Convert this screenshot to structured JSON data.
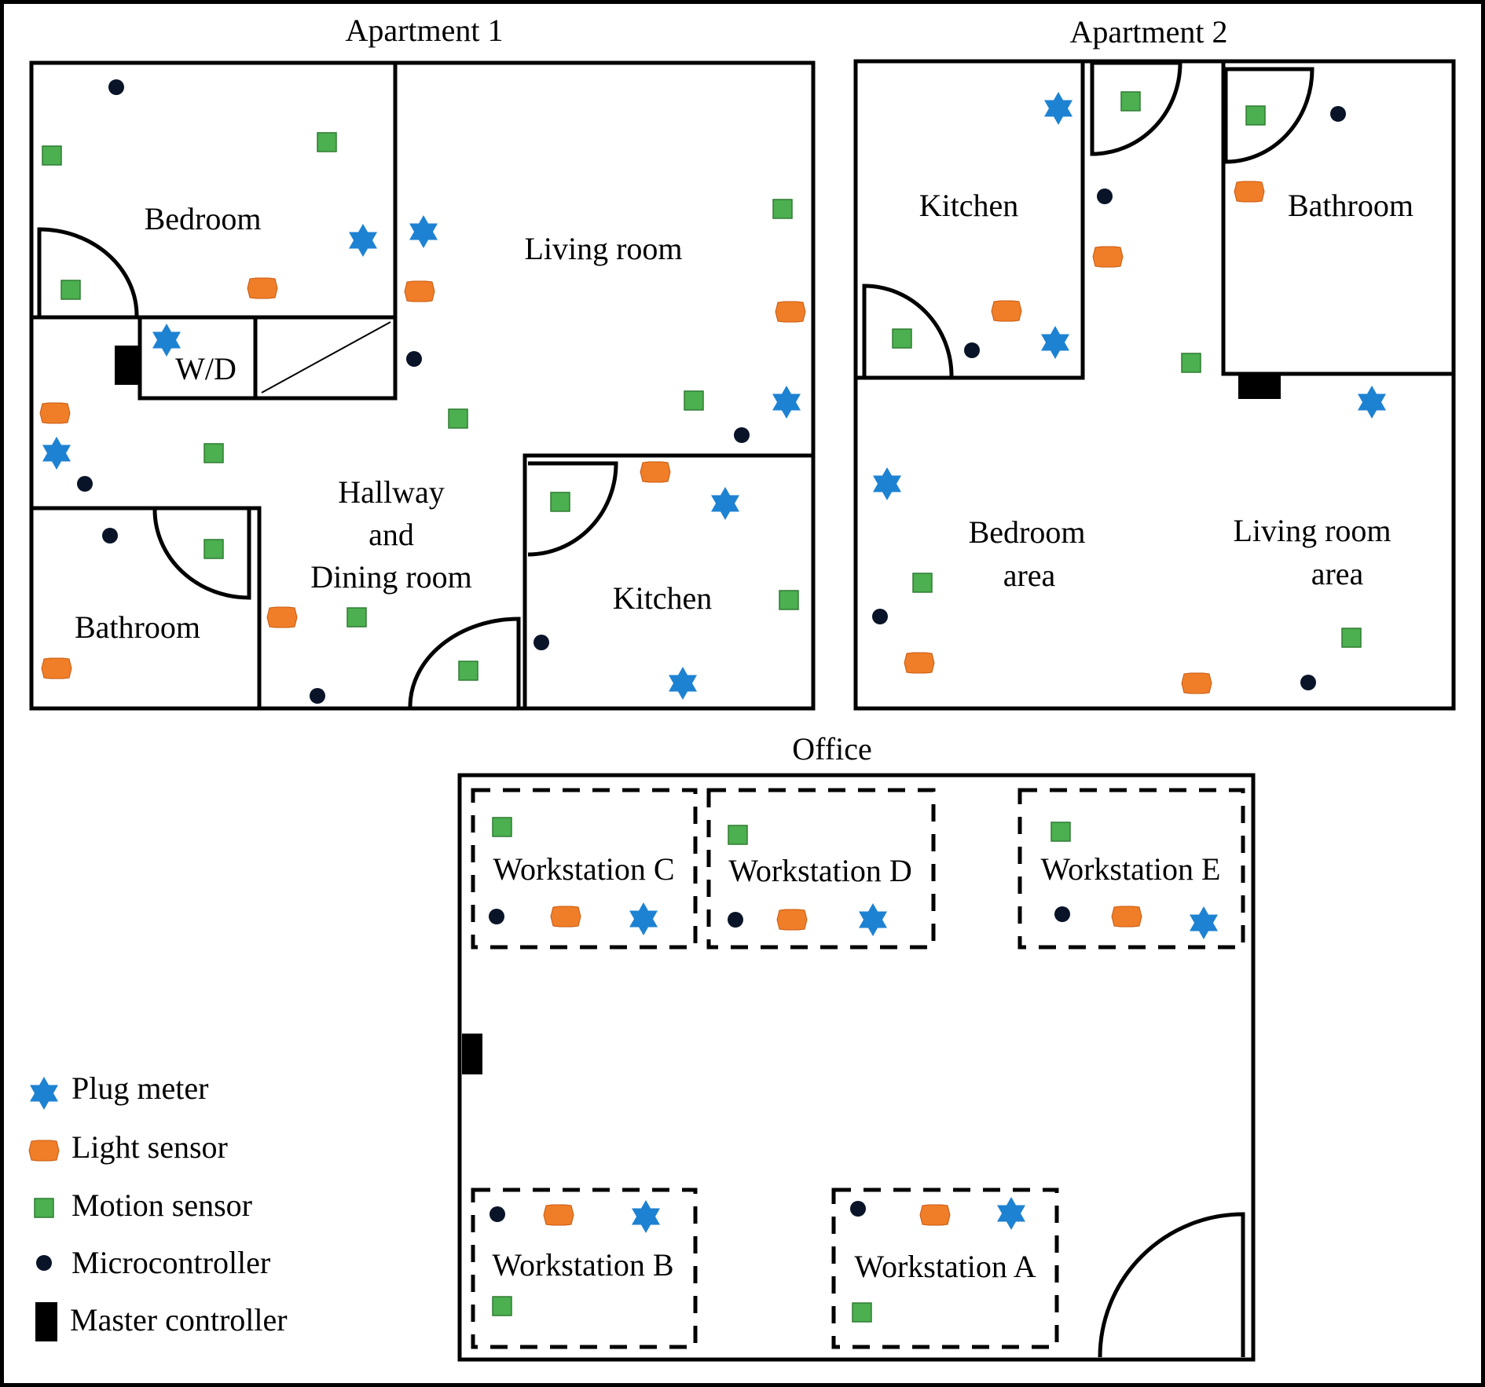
{
  "titles": {
    "apartment1": "Apartment 1",
    "apartment2": "Apartment 2",
    "office": "Office"
  },
  "apartment1": {
    "bedroom": "Bedroom",
    "living_room": "Living room",
    "wd": "W/D",
    "hallway_line1": "Hallway",
    "hallway_line2": "and",
    "hallway_line3": "Dining room",
    "bathroom": "Bathroom",
    "kitchen": "Kitchen"
  },
  "apartment2": {
    "kitchen": "Kitchen",
    "bathroom": "Bathroom",
    "bedroom_line1": "Bedroom",
    "bedroom_line2": "area",
    "living_line1": "Living room",
    "living_line2": "area"
  },
  "office": {
    "ws_c": "Workstation C",
    "ws_d": "Workstation D",
    "ws_e": "Workstation E",
    "ws_b": "Workstation B",
    "ws_a": "Workstation A"
  },
  "legend": {
    "plug_meter": "Plug meter",
    "light_sensor": "Light sensor",
    "motion_sensor": "Motion sensor",
    "microcontroller": "Microcontroller",
    "master_controller": "Master controller"
  },
  "colors": {
    "plug_meter": "#1e82d2",
    "light_sensor": "#f07d28",
    "motion_sensor": "#4caf50",
    "microcontroller": "#0a1428",
    "master_controller": "#000000"
  }
}
